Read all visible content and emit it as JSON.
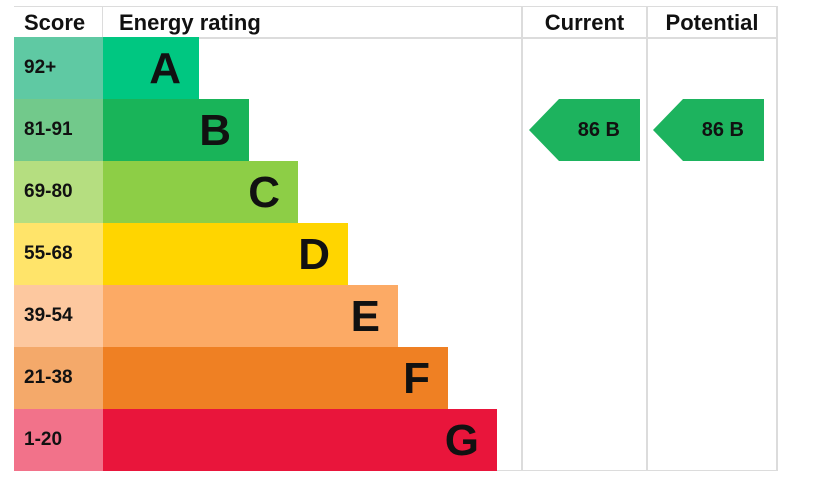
{
  "chart_data": {
    "type": "bar",
    "headers": {
      "score": "Score",
      "rating": "Energy rating",
      "current": "Current",
      "potential": "Potential"
    },
    "bands": [
      {
        "score": "92+",
        "letter": "A",
        "color": "#00c781",
        "score_color": "#5fc9a3"
      },
      {
        "score": "81-91",
        "letter": "B",
        "color": "#19b459",
        "score_color": "#72c98b"
      },
      {
        "score": "69-80",
        "letter": "C",
        "color": "#8dce46",
        "score_color": "#b5de80"
      },
      {
        "score": "55-68",
        "letter": "D",
        "color": "#ffd500",
        "score_color": "#ffe46a"
      },
      {
        "score": "39-54",
        "letter": "E",
        "color": "#fcaa65",
        "score_color": "#fdc89f"
      },
      {
        "score": "21-38",
        "letter": "F",
        "color": "#ef8023",
        "score_color": "#f4a96a"
      },
      {
        "score": "1-20",
        "letter": "G",
        "color": "#e9153b",
        "score_color": "#f2728a"
      }
    ],
    "current": {
      "value": 86,
      "letter": "B",
      "label": "86  B",
      "color": "#1db35e"
    },
    "potential": {
      "value": 86,
      "letter": "B",
      "label": "86  B",
      "color": "#1db35e"
    }
  }
}
